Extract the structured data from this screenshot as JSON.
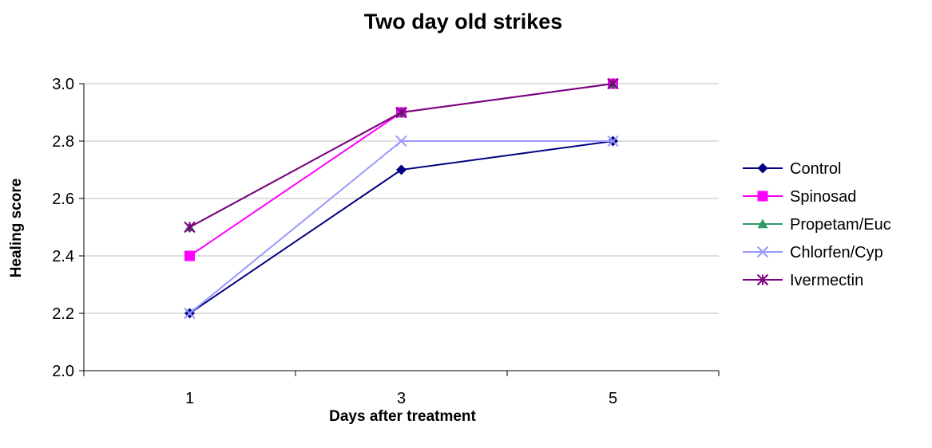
{
  "chart_data": {
    "type": "line",
    "title": "Two  day old strikes",
    "xlabel": "Days after treatment",
    "ylabel": "Healing score",
    "categories": [
      "1",
      "3",
      "5"
    ],
    "ylim": [
      2.0,
      3.0
    ],
    "yticks": [
      "2.0",
      "2.2",
      "2.4",
      "2.6",
      "2.8",
      "3.0"
    ],
    "grid": true,
    "legend_position": "right",
    "series": [
      {
        "name": "Control",
        "values": [
          2.2,
          2.7,
          2.8
        ],
        "color": "#000080",
        "marker": "diamond"
      },
      {
        "name": "Spinosad",
        "values": [
          2.4,
          2.9,
          3.0
        ],
        "color": "#FF00FF",
        "marker": "square"
      },
      {
        "name": "Propetam/Euc",
        "values": [
          2.5,
          2.9,
          3.0
        ],
        "color": "#339966",
        "marker": "triangle"
      },
      {
        "name": "Chlorfen/Cyp",
        "values": [
          2.2,
          2.8,
          2.8
        ],
        "color": "#9999FF",
        "marker": "x"
      },
      {
        "name": "Ivermectin",
        "values": [
          2.5,
          2.9,
          3.0
        ],
        "color": "#800080",
        "marker": "star"
      }
    ]
  }
}
